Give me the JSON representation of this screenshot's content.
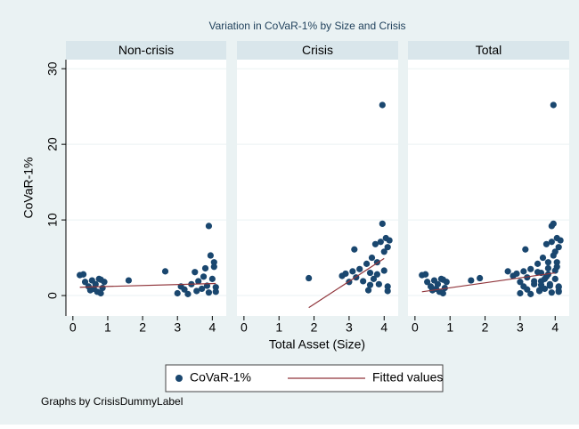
{
  "chart_data": {
    "type": "scatter",
    "title": "Variation in CoVaR-1% by Size and Crisis",
    "xlabel": "Total Asset (Size)",
    "ylabel": "CoVaR-1%",
    "note": "Graphs by CrisisDummyLabel",
    "xlim": [
      -0.2,
      4.4
    ],
    "xticks": [
      0,
      1,
      2,
      3,
      4
    ],
    "ylim": [
      -2.7,
      31.2
    ],
    "yticks": [
      0,
      10,
      20,
      30
    ],
    "series": [
      {
        "name": "CoVaR-1%",
        "color": "#1a476f"
      },
      {
        "name": "Fitted values",
        "color": "#90353b"
      }
    ],
    "panels": [
      {
        "title": "Non-crisis",
        "x": [
          0.2,
          0.3,
          0.35,
          0.45,
          0.5,
          0.55,
          0.6,
          0.65,
          0.7,
          0.75,
          0.8,
          0.85,
          0.9,
          0.8,
          1.6,
          2.65,
          3.0,
          3.1,
          3.2,
          3.3,
          3.4,
          3.5,
          3.55,
          3.6,
          3.7,
          3.75,
          3.8,
          3.85,
          3.9,
          3.9,
          3.95,
          4.0,
          4.05,
          4.1,
          4.05,
          4.1
        ],
        "y": [
          2.7,
          2.8,
          1.8,
          1.2,
          0.7,
          2.0,
          0.9,
          1.5,
          0.5,
          2.2,
          0.3,
          1.0,
          1.8,
          2.1,
          2.0,
          3.2,
          0.3,
          1.2,
          0.8,
          0.2,
          1.5,
          3.1,
          0.6,
          1.9,
          0.9,
          2.5,
          3.6,
          1.3,
          0.4,
          9.2,
          5.3,
          2.2,
          4.4,
          1.1,
          3.8,
          0.5
        ],
        "fit_x": [
          0.2,
          4.1
        ],
        "fit_y": [
          1.1,
          1.6
        ]
      },
      {
        "title": "Crisis",
        "x": [
          1.85,
          2.8,
          2.9,
          3.0,
          3.1,
          3.15,
          3.2,
          3.3,
          3.4,
          3.5,
          3.55,
          3.6,
          3.65,
          3.7,
          3.75,
          3.8,
          3.85,
          3.9,
          3.95,
          3.95,
          4.0,
          4.0,
          4.05,
          4.1,
          4.1,
          4.15,
          4.1,
          3.8,
          3.6
        ],
        "y": [
          2.3,
          2.6,
          2.9,
          1.8,
          3.2,
          6.1,
          2.4,
          3.5,
          1.9,
          4.2,
          0.7,
          3.0,
          5.0,
          2.2,
          6.8,
          4.4,
          1.5,
          7.1,
          25.2,
          9.5,
          5.8,
          3.3,
          7.6,
          6.4,
          1.2,
          7.3,
          0.6,
          2.8,
          1.4
        ],
        "fit_x": [
          1.85,
          4.0
        ],
        "fit_y": [
          -1.6,
          4.9
        ]
      },
      {
        "title": "Total",
        "x": [
          0.2,
          0.3,
          0.35,
          0.45,
          0.5,
          0.55,
          0.6,
          0.65,
          0.7,
          0.75,
          0.8,
          0.85,
          0.9,
          0.8,
          1.6,
          2.65,
          3.0,
          3.1,
          3.2,
          3.3,
          3.4,
          3.5,
          3.55,
          3.6,
          3.7,
          3.75,
          3.8,
          3.85,
          3.9,
          3.9,
          3.95,
          4.0,
          4.05,
          4.1,
          4.05,
          4.1,
          1.85,
          2.8,
          2.9,
          3.0,
          3.1,
          3.15,
          3.2,
          3.3,
          3.4,
          3.5,
          3.55,
          3.6,
          3.65,
          3.7,
          3.75,
          3.8,
          3.85,
          3.9,
          3.95,
          3.95,
          4.0,
          4.0,
          4.05,
          4.1,
          4.1,
          4.15,
          4.1,
          3.8,
          3.6
        ],
        "y": [
          2.7,
          2.8,
          1.8,
          1.2,
          0.7,
          2.0,
          0.9,
          1.5,
          0.5,
          2.2,
          0.3,
          1.0,
          1.8,
          2.1,
          2.0,
          3.2,
          0.3,
          1.2,
          0.8,
          0.2,
          1.5,
          3.1,
          0.6,
          1.9,
          0.9,
          2.5,
          3.6,
          1.3,
          0.4,
          9.2,
          5.3,
          2.2,
          4.4,
          1.1,
          3.8,
          0.5,
          2.3,
          2.6,
          2.9,
          1.8,
          3.2,
          6.1,
          2.4,
          3.5,
          1.9,
          4.2,
          0.7,
          3.0,
          5.0,
          2.2,
          6.8,
          4.4,
          1.5,
          7.1,
          25.2,
          9.5,
          5.8,
          3.3,
          7.6,
          6.4,
          1.2,
          7.3,
          0.6,
          2.8,
          1.4
        ],
        "fit_x": [
          0.2,
          4.0
        ],
        "fit_y": [
          0.5,
          3.0
        ]
      }
    ]
  }
}
